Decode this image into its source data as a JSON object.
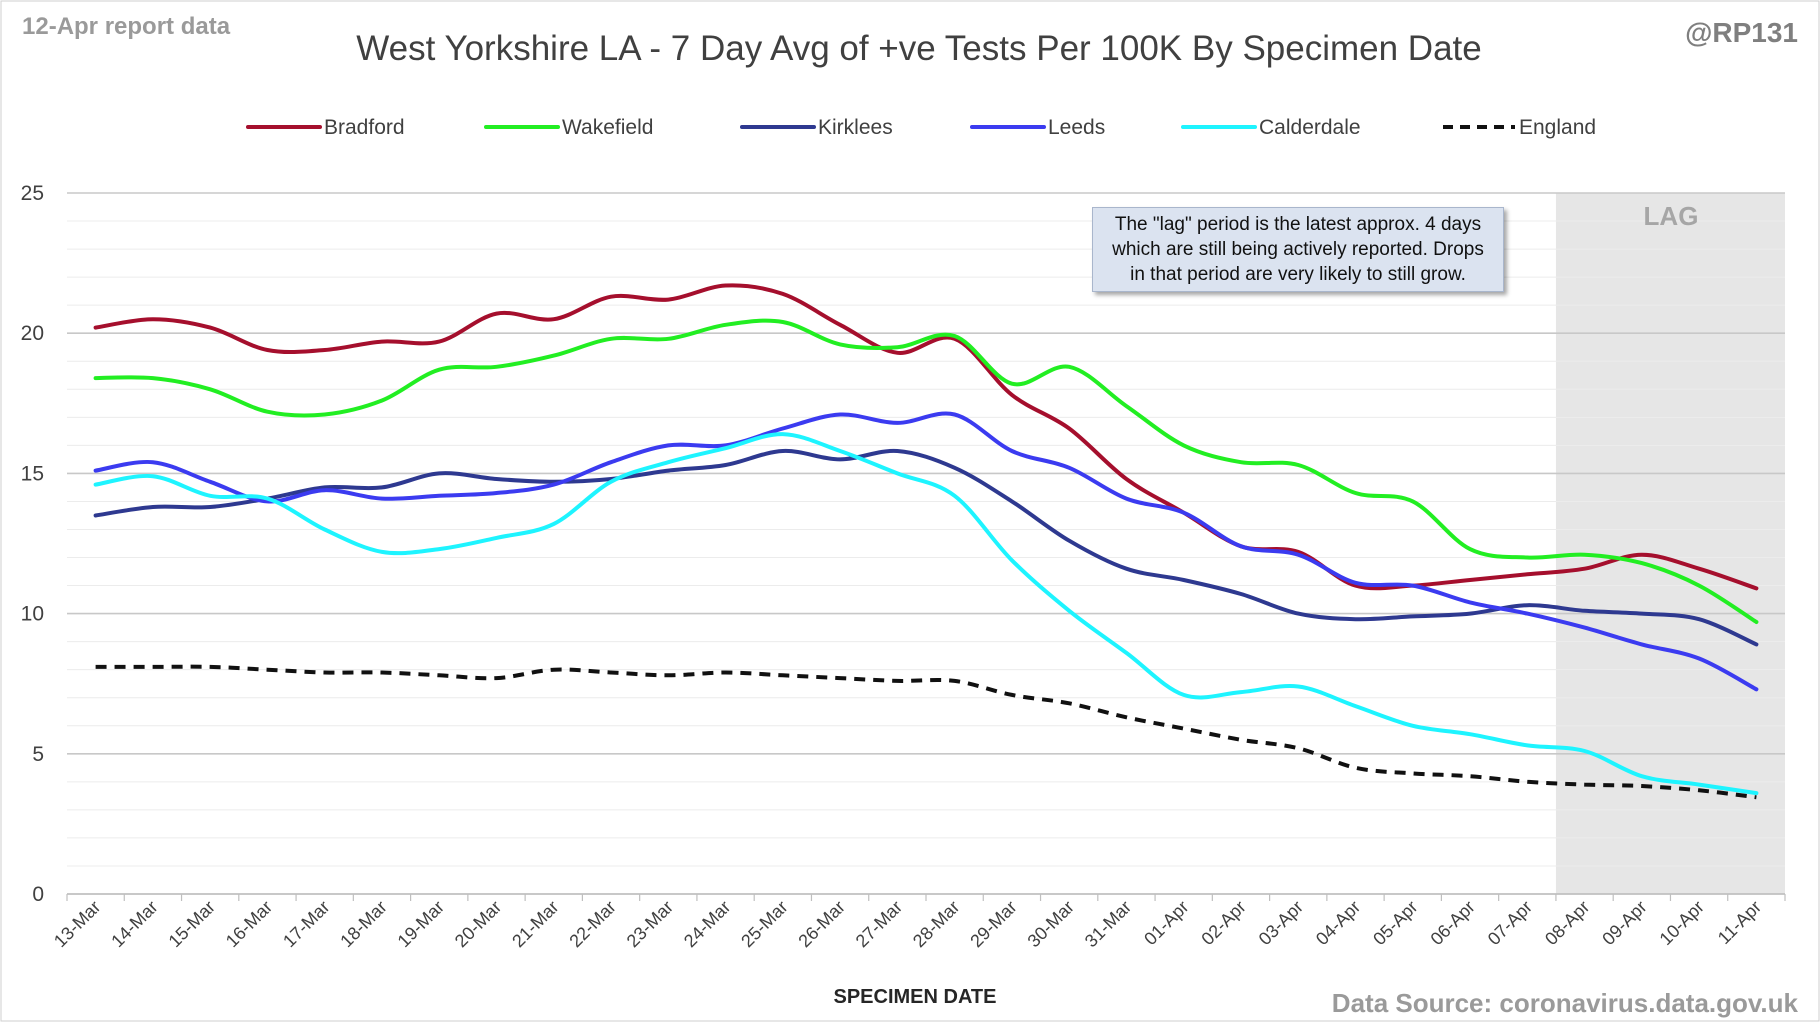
{
  "header": {
    "report_label": "12-Apr report data",
    "handle": "@RP131"
  },
  "footer": {
    "source": "Data Source: coronavirus.data.gov.uk"
  },
  "annotation": {
    "lag_label": "LAG",
    "note": "The \"lag\" period is the latest approx. 4 days which are still being actively reported.  Drops in that period are very likely to still grow."
  },
  "colors": {
    "Bradford": "#a50f2d",
    "Wakefield": "#22ee22",
    "Kirklees": "#2e3990",
    "Leeds": "#3b3bf0",
    "Calderdale": "#1ef4ff",
    "England": "#111111",
    "lag_shade": "#e6e6e6",
    "grid": "#d9d9d9"
  },
  "chart_data": {
    "type": "line",
    "title": "West Yorkshire LA - 7 Day Avg of +ve Tests Per 100K By Specimen Date",
    "xlabel": "SPECIMEN DATE",
    "ylabel": "",
    "ylim": [
      0,
      25
    ],
    "yticks": [
      0,
      5,
      10,
      15,
      20,
      25
    ],
    "grid": true,
    "legend_position": "top",
    "lag_period": [
      "08-Apr",
      "11-Apr"
    ],
    "categories": [
      "13-Mar",
      "14-Mar",
      "15-Mar",
      "16-Mar",
      "17-Mar",
      "18-Mar",
      "19-Mar",
      "20-Mar",
      "21-Mar",
      "22-Mar",
      "23-Mar",
      "24-Mar",
      "25-Mar",
      "26-Mar",
      "27-Mar",
      "28-Mar",
      "29-Mar",
      "30-Mar",
      "31-Mar",
      "01-Apr",
      "02-Apr",
      "03-Apr",
      "04-Apr",
      "05-Apr",
      "06-Apr",
      "07-Apr",
      "08-Apr",
      "09-Apr",
      "10-Apr",
      "11-Apr"
    ],
    "series": [
      {
        "name": "Bradford",
        "dashed": false,
        "values": [
          20.2,
          20.5,
          20.2,
          19.4,
          19.4,
          19.7,
          19.7,
          20.7,
          20.5,
          21.3,
          21.2,
          21.7,
          21.4,
          20.3,
          19.3,
          19.8,
          17.8,
          16.6,
          14.8,
          13.6,
          12.4,
          12.2,
          11.0,
          11.0,
          11.2,
          11.4,
          11.6,
          12.1,
          11.6,
          10.9
        ]
      },
      {
        "name": "Wakefield",
        "dashed": false,
        "values": [
          18.4,
          18.4,
          18.0,
          17.2,
          17.1,
          17.6,
          18.7,
          18.8,
          19.2,
          19.8,
          19.8,
          20.3,
          20.4,
          19.6,
          19.5,
          19.9,
          18.2,
          18.8,
          17.4,
          16.0,
          15.4,
          15.3,
          14.3,
          14.0,
          12.3,
          12.0,
          12.1,
          11.8,
          11.0,
          9.7
        ]
      },
      {
        "name": "Kirklees",
        "dashed": false,
        "values": [
          13.5,
          13.8,
          13.8,
          14.1,
          14.5,
          14.5,
          15.0,
          14.8,
          14.7,
          14.8,
          15.1,
          15.3,
          15.8,
          15.5,
          15.8,
          15.2,
          14.0,
          12.6,
          11.6,
          11.2,
          10.7,
          10.0,
          9.8,
          9.9,
          10.0,
          10.3,
          10.1,
          10.0,
          9.8,
          8.9
        ]
      },
      {
        "name": "Leeds",
        "dashed": false,
        "values": [
          15.1,
          15.4,
          14.7,
          14.0,
          14.4,
          14.1,
          14.2,
          14.3,
          14.6,
          15.4,
          16.0,
          16.0,
          16.6,
          17.1,
          16.8,
          17.1,
          15.8,
          15.2,
          14.1,
          13.6,
          12.4,
          12.1,
          11.1,
          11.0,
          10.4,
          10.0,
          9.5,
          8.9,
          8.4,
          7.3
        ]
      },
      {
        "name": "Calderdale",
        "dashed": false,
        "values": [
          14.6,
          14.9,
          14.2,
          14.1,
          13.0,
          12.2,
          12.3,
          12.7,
          13.2,
          14.7,
          15.4,
          15.9,
          16.4,
          15.8,
          15.0,
          14.2,
          11.9,
          10.1,
          8.6,
          7.1,
          7.2,
          7.4,
          6.7,
          6.0,
          5.7,
          5.3,
          5.1,
          4.2,
          3.9,
          3.6
        ]
      },
      {
        "name": "England",
        "dashed": true,
        "values": [
          8.1,
          8.1,
          8.1,
          8.0,
          7.9,
          7.9,
          7.8,
          7.7,
          8.0,
          7.9,
          7.8,
          7.9,
          7.8,
          7.7,
          7.6,
          7.6,
          7.1,
          6.8,
          6.3,
          5.9,
          5.5,
          5.2,
          4.5,
          4.3,
          4.2,
          4.0,
          3.9,
          3.85,
          3.7,
          3.45
        ]
      }
    ]
  }
}
